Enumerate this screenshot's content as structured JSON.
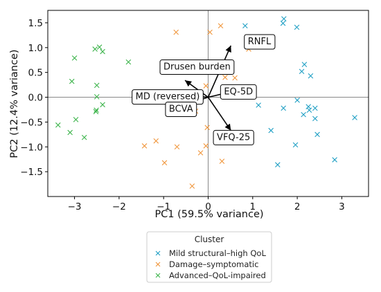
{
  "chart_data": {
    "type": "scatter",
    "subtype": "pca-biplot",
    "xlabel": "PC1 (59.5% variance)",
    "ylabel": "PC2 (12.4% variance)",
    "xlim": [
      -3.6,
      3.6
    ],
    "ylim": [
      -2.0,
      1.75
    ],
    "xticks": [
      -3,
      -2,
      -1,
      0,
      1,
      2,
      3
    ],
    "yticks": [
      -1.5,
      -1.0,
      -0.5,
      0.0,
      0.5,
      1.0,
      1.5
    ],
    "xtick_labels": [
      "−3",
      "−2",
      "−1",
      "0",
      "1",
      "2",
      "3"
    ],
    "ytick_labels": [
      "−1.5",
      "−1.0",
      "−0.5",
      "0.0",
      "0.5",
      "1.0",
      "1.5"
    ],
    "grid": false,
    "origin_lines": true,
    "marker": "x",
    "legend": {
      "title": "Cluster",
      "placement": "bottom-center"
    },
    "series": [
      {
        "name": "Mild structural–high QoL",
        "color": "#1f9fc4",
        "points": [
          [
            1.7,
            1.58
          ],
          [
            1.68,
            1.49
          ],
          [
            0.83,
            1.44
          ],
          [
            1.99,
            1.41
          ],
          [
            2.16,
            0.66
          ],
          [
            2.3,
            0.43
          ],
          [
            2.1,
            0.52
          ],
          [
            1.13,
            -0.16
          ],
          [
            1.69,
            -0.22
          ],
          [
            2.0,
            -0.06
          ],
          [
            2.25,
            -0.19
          ],
          [
            2.27,
            -0.26
          ],
          [
            2.4,
            -0.22
          ],
          [
            2.14,
            -0.35
          ],
          [
            2.4,
            -0.43
          ],
          [
            1.41,
            -0.67
          ],
          [
            2.45,
            -0.75
          ],
          [
            1.96,
            -0.96
          ],
          [
            1.56,
            -1.36
          ],
          [
            2.84,
            -1.26
          ],
          [
            3.29,
            -0.41
          ]
        ]
      },
      {
        "name": "Damage–symptomatic",
        "color": "#f0963c",
        "points": [
          [
            -0.72,
            1.31
          ],
          [
            0.04,
            1.31
          ],
          [
            0.28,
            1.44
          ],
          [
            0.91,
            0.97
          ],
          [
            -0.05,
            0.23
          ],
          [
            0.13,
            0.57
          ],
          [
            0.38,
            0.4
          ],
          [
            0.6,
            0.39
          ],
          [
            -0.28,
            -0.28
          ],
          [
            -0.02,
            -0.61
          ],
          [
            -1.43,
            -0.98
          ],
          [
            -1.17,
            -0.88
          ],
          [
            -0.7,
            -1.0
          ],
          [
            -0.05,
            -0.98
          ],
          [
            -0.17,
            -1.12
          ],
          [
            -0.98,
            -1.32
          ],
          [
            0.31,
            -1.29
          ],
          [
            -0.36,
            -1.79
          ]
        ]
      },
      {
        "name": "Advanced–QoL-impaired",
        "color": "#3cb44b",
        "points": [
          [
            -2.44,
            1.01
          ],
          [
            -2.54,
            0.97
          ],
          [
            -2.37,
            0.92
          ],
          [
            -3.0,
            0.79
          ],
          [
            -1.79,
            0.71
          ],
          [
            -3.06,
            0.32
          ],
          [
            -2.5,
            0.24
          ],
          [
            -2.5,
            0.01
          ],
          [
            -2.37,
            -0.15
          ],
          [
            -2.51,
            -0.26
          ],
          [
            -2.52,
            -0.29
          ],
          [
            -2.97,
            -0.45
          ],
          [
            -3.37,
            -0.56
          ],
          [
            -3.1,
            -0.71
          ],
          [
            -2.78,
            -0.81
          ]
        ]
      }
    ],
    "loadings": [
      {
        "label": "RNFL",
        "dx": 0.51,
        "dy": 1.04
      },
      {
        "label": "Drusen burden",
        "dx": -0.52,
        "dy": 0.34
      },
      {
        "label": "MD (reversed)",
        "dx": -0.61,
        "dy": 0.04
      },
      {
        "label": "EQ-5D",
        "dx": 0.43,
        "dy": 0.09
      },
      {
        "label": "BCVA",
        "dx": -0.53,
        "dy": -0.16
      },
      {
        "label": "VFQ-25",
        "dx": 0.51,
        "dy": -0.67
      }
    ]
  },
  "legend": {
    "title": "Cluster",
    "entries": [
      "Mild structural–high QoL",
      "Damage–symptomatic",
      "Advanced–QoL-impaired"
    ]
  }
}
